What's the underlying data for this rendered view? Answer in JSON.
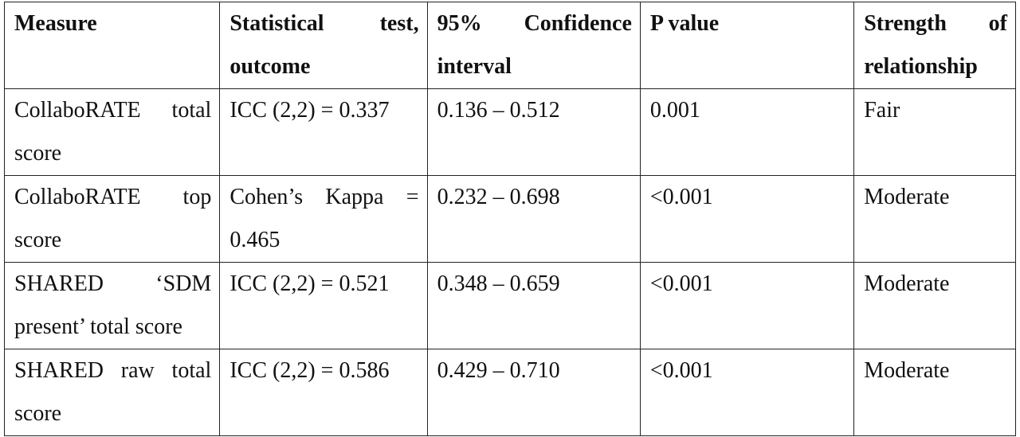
{
  "table": {
    "headers": [
      [
        "Measure"
      ],
      [
        "Statistical test,",
        "outcome"
      ],
      [
        "95% Confidence",
        "interval"
      ],
      [
        "P value"
      ],
      [
        "Strength of",
        "relationship"
      ]
    ],
    "rows": [
      {
        "measure": [
          "CollaboRATE total",
          "score"
        ],
        "test": [
          "ICC (2,2) = 0.337"
        ],
        "ci": "0.136 – 0.512",
        "p": "0.001",
        "strength": "Fair"
      },
      {
        "measure": [
          "CollaboRATE top",
          "score"
        ],
        "test": [
          "Cohen’s Kappa =",
          "0.465"
        ],
        "ci": "0.232 – 0.698",
        "p": "<0.001",
        "strength": "Moderate"
      },
      {
        "measure": [
          "SHARED ‘SDM",
          "present’ total score"
        ],
        "test": [
          "ICC (2,2) = 0.521"
        ],
        "ci": "0.348 – 0.659",
        "p": "<0.001",
        "strength": "Moderate"
      },
      {
        "measure": [
          "SHARED raw total",
          "score"
        ],
        "test": [
          "ICC (2,2) = 0.586"
        ],
        "ci": "0.429 – 0.710",
        "p": "<0.001",
        "strength": "Moderate"
      }
    ]
  }
}
